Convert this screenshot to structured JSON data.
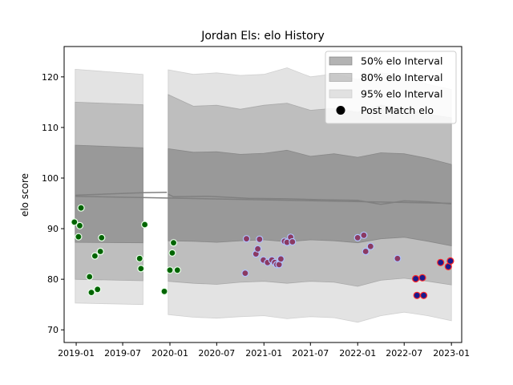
{
  "chart_data": {
    "type": "scatter",
    "title": "Jordan Els: elo History",
    "xlabel": "",
    "ylabel": "elo score",
    "xlim": [
      "2018-11-15",
      "2023-02-10"
    ],
    "ylim": [
      67.5,
      126.0
    ],
    "x_ticks": [
      "2019-01",
      "2019-07",
      "2020-01",
      "2020-07",
      "2021-01",
      "2021-07",
      "2022-01",
      "2022-07",
      "2023-01"
    ],
    "y_ticks": [
      70,
      80,
      90,
      100,
      110,
      120
    ],
    "grid": false,
    "legend_position": "top-right",
    "legend": [
      {
        "label": "50% elo Interval",
        "kind": "band",
        "color": "#808080",
        "opacity": 0.6
      },
      {
        "label": "80% elo Interval",
        "kind": "band",
        "color": "#a0a0a0",
        "opacity": 0.55
      },
      {
        "label": "95% elo Interval",
        "kind": "band",
        "color": "#c8c8c8",
        "opacity": 0.5
      },
      {
        "label": "Post Match elo",
        "kind": "marker",
        "color": "#000000"
      }
    ],
    "bands": [
      {
        "name": "95% elo Interval",
        "color": "#c8c8c8",
        "opacity": 0.5,
        "segments": [
          {
            "x": [
              "2018-12-28",
              "2019-09-18"
            ],
            "upper": [
              121.5,
              120.5
            ],
            "lower": [
              75.3,
              75.0
            ]
          },
          {
            "x": [
              "2019-12-25",
              "2020-04-01",
              "2020-07-01",
              "2020-10-01",
              "2021-01-01",
              "2021-04-01",
              "2021-07-01",
              "2021-10-01",
              "2022-01-01",
              "2022-04-01",
              "2022-07-01",
              "2022-10-01",
              "2023-01-01"
            ],
            "upper": [
              121.4,
              120.5,
              120.8,
              120.3,
              120.5,
              121.8,
              120.0,
              120.6,
              119.5,
              120.8,
              120.2,
              118.5,
              117.5
            ],
            "lower": [
              73.0,
              72.5,
              72.3,
              72.6,
              72.8,
              72.2,
              72.6,
              72.4,
              71.5,
              72.8,
              73.5,
              72.8,
              71.8
            ]
          }
        ]
      },
      {
        "name": "80% elo Interval",
        "color": "#a0a0a0",
        "opacity": 0.55,
        "segments": [
          {
            "x": [
              "2018-12-28",
              "2019-09-18"
            ],
            "upper": [
              115.0,
              114.5
            ],
            "lower": [
              80.0,
              79.7
            ]
          },
          {
            "x": [
              "2019-12-25",
              "2020-04-01",
              "2020-07-01",
              "2020-10-01",
              "2021-01-01",
              "2021-04-01",
              "2021-07-01",
              "2021-10-01",
              "2022-01-01",
              "2022-04-01",
              "2022-07-01",
              "2022-10-01",
              "2023-01-01"
            ],
            "upper": [
              116.5,
              114.2,
              114.4,
              113.6,
              114.4,
              114.8,
              113.4,
              113.8,
              113.0,
              114.4,
              113.8,
              112.6,
              111.9
            ],
            "lower": [
              79.6,
              79.2,
              79.0,
              79.4,
              79.6,
              79.2,
              79.6,
              79.4,
              78.6,
              79.8,
              80.2,
              79.6,
              78.9
            ]
          }
        ]
      },
      {
        "name": "50% elo Interval",
        "color": "#808080",
        "opacity": 0.6,
        "segments": [
          {
            "x": [
              "2018-12-28",
              "2019-09-18"
            ],
            "upper": [
              106.5,
              106.0
            ],
            "lower": [
              87.3,
              87.2
            ]
          },
          {
            "x": [
              "2019-12-25",
              "2020-04-01",
              "2020-07-01",
              "2020-10-01",
              "2021-01-01",
              "2021-04-01",
              "2021-07-01",
              "2021-10-01",
              "2022-01-01",
              "2022-04-01",
              "2022-07-01",
              "2022-10-01",
              "2023-01-01"
            ],
            "upper": [
              105.8,
              105.1,
              105.2,
              104.7,
              104.9,
              105.5,
              104.3,
              104.8,
              104.1,
              105.0,
              104.8,
              103.9,
              102.7
            ],
            "lower": [
              87.6,
              87.5,
              87.3,
              87.6,
              87.8,
              87.4,
              87.8,
              87.6,
              87.2,
              88.0,
              88.3,
              87.5,
              86.6
            ]
          }
        ]
      }
    ],
    "center_lines": [
      {
        "x": [
          "2018-12-28",
          "2019-09-18",
          "2019-12-20"
        ],
        "y": [
          96.6,
          97.1,
          97.2
        ]
      },
      {
        "x": [
          "2018-12-28",
          "2023-01-01"
        ],
        "y": [
          96.4,
          95.0
        ]
      },
      {
        "x": [
          "2019-12-25",
          "2020-01-15",
          "2020-06-01",
          "2020-11-01",
          "2021-04-01",
          "2021-09-01",
          "2022-01-01",
          "2022-04-01",
          "2022-07-01",
          "2022-10-01",
          "2023-01-01"
        ],
        "y": [
          96.8,
          96.3,
          96.4,
          96.0,
          95.9,
          95.7,
          95.6,
          94.8,
          95.5,
          95.3,
          94.9
        ]
      }
    ],
    "series": [
      {
        "name": "Post Match elo",
        "point_groups": [
          {
            "fill": "#006400",
            "stroke": "#e8ffe8",
            "points": [
              [
                "2018-12-25",
                91.3
              ],
              [
                "2019-01-10",
                88.4
              ],
              [
                "2019-01-15",
                90.6
              ],
              [
                "2019-01-20",
                94.1
              ],
              [
                "2019-02-22",
                80.5
              ],
              [
                "2019-03-01",
                77.4
              ],
              [
                "2019-03-15",
                84.6
              ],
              [
                "2019-03-25",
                78.0
              ],
              [
                "2019-04-05",
                85.5
              ],
              [
                "2019-04-10",
                88.2
              ],
              [
                "2019-09-05",
                84.1
              ],
              [
                "2019-09-10",
                82.1
              ],
              [
                "2019-09-25",
                90.8
              ],
              [
                "2019-12-10",
                77.6
              ],
              [
                "2020-01-01",
                81.8
              ],
              [
                "2020-01-10",
                85.2
              ],
              [
                "2020-01-15",
                87.2
              ],
              [
                "2020-01-30",
                81.8
              ]
            ]
          },
          {
            "fill": "#8b3a62",
            "stroke": "#b0c4ff",
            "points": [
              [
                "2020-10-20",
                81.2
              ],
              [
                "2020-10-25",
                88.0
              ],
              [
                "2020-12-01",
                85.0
              ],
              [
                "2020-12-08",
                86.0
              ],
              [
                "2020-12-15",
                87.9
              ],
              [
                "2020-12-30",
                83.8
              ],
              [
                "2021-01-15",
                83.3
              ],
              [
                "2021-02-01",
                83.8
              ],
              [
                "2021-02-12",
                83.3
              ],
              [
                "2021-02-20",
                82.9
              ],
              [
                "2021-03-01",
                82.9
              ],
              [
                "2021-03-08",
                84.0
              ],
              [
                "2021-03-22",
                87.5
              ],
              [
                "2021-04-01",
                87.3
              ],
              [
                "2021-04-15",
                88.3
              ],
              [
                "2021-04-22",
                87.4
              ],
              [
                "2022-01-01",
                88.2
              ],
              [
                "2022-01-25",
                88.7
              ],
              [
                "2022-02-01",
                85.5
              ],
              [
                "2022-02-20",
                86.5
              ],
              [
                "2022-06-05",
                84.1
              ]
            ]
          },
          {
            "fill": "#1a1a8c",
            "stroke": "#ff2a2a",
            "points": [
              [
                "2022-08-15",
                80.1
              ],
              [
                "2022-08-20",
                76.8
              ],
              [
                "2022-09-10",
                80.3
              ],
              [
                "2022-09-15",
                76.8
              ],
              [
                "2022-11-20",
                83.3
              ],
              [
                "2022-12-20",
                82.5
              ],
              [
                "2022-12-28",
                83.6
              ]
            ]
          }
        ]
      }
    ]
  }
}
